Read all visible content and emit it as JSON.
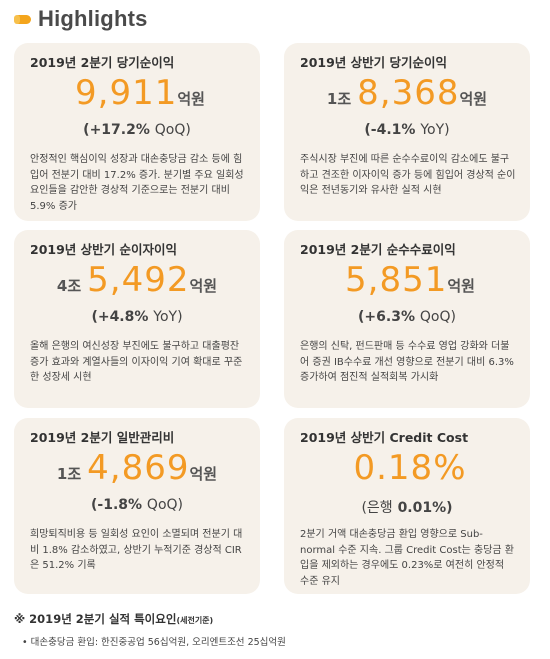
{
  "header": {
    "title": "Highlights"
  },
  "cards": [
    {
      "title": "2019년 2분기 당기순이익",
      "jo": "",
      "value": "9,911",
      "unit": "억원",
      "change_value": "(+17.2%",
      "change_period": "QoQ)",
      "description": "안정적인 핵심이익 성장과 대손충당금 감소 등에 힘입어 전분기 대비 17.2% 증가. 분기별 주요 일회성 요인들을 감안한 경상적 기준으로는 전분기 대비 5.9% 증가"
    },
    {
      "title": "2019년 상반기 당기순이익",
      "jo": "1조",
      "value": "8,368",
      "unit": "억원",
      "change_value": "(-4.1%",
      "change_period": "YoY)",
      "description": "주식시장 부진에 따른 순수수료이익 감소에도 불구하고 견조한 이자이익 증가 등에 힘입어 경상적 순이익은 전년동기와 유사한 실적 시현"
    },
    {
      "title": "2019년 상반기 순이자이익",
      "jo": "4조",
      "value": "5,492",
      "unit": "억원",
      "change_value": "(+4.8%",
      "change_period": "YoY)",
      "description": "올해 은행의 여신성장 부진에도 불구하고 대출평잔 증가 효과와 계열사들의 이자이익 기여 확대로 꾸준한 성장세 시현"
    },
    {
      "title": "2019년 2분기 순수수료이익",
      "jo": "",
      "value": "5,851",
      "unit": "억원",
      "change_value": "(+6.3%",
      "change_period": "QoQ)",
      "description": "은행의 신탁, 펀드판매 등 수수료 영업 강화와 더불어 증권 IB수수료 개선 영향으로 전분기 대비 6.3% 증가하여 점진적 실적회복 가시화"
    },
    {
      "title": "2019년 2분기 일반관리비",
      "jo": "1조",
      "value": "4,869",
      "unit": "억원",
      "change_value": "(-1.8%",
      "change_period": "QoQ)",
      "description": "희망퇴직비용 등 일회성 요인이 소멸되며 전분기 대비 1.8% 감소하였고, 상반기 누적기준 경상적 CIR은 51.2% 기록"
    },
    {
      "title": "2019년 상반기 Credit Cost",
      "jo": "",
      "value": "0.18%",
      "unit": "",
      "change_value": "(은행",
      "change_period": "0.01%)",
      "description": "2분기 거액 대손충당금 환입 영향으로 Sub-normal 수준 지속. 그룹 Credit Cost는 충당금 환입을 제외하는 경우에도 0.23%로 여전히 안정적 수준 유지"
    }
  ],
  "footer": {
    "title": "※ 2019년 2분기 실적 특이요인",
    "title_note": "(세전기준)",
    "item": "• 대손충당금 환입:  한진중공업 56십억원, 오리엔트조선 25십억원"
  },
  "colors": {
    "accent": "#f39a24",
    "card_bg": "#f6f1ea",
    "icon": "#f4a51c"
  }
}
